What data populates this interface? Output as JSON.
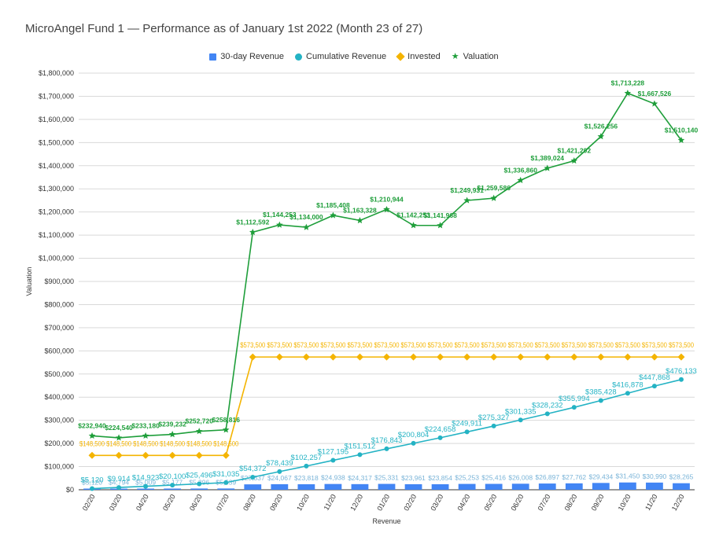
{
  "chart_data": {
    "type": "bar",
    "title": "MicroAngel Fund 1 — Performance as of January 1st 2022 (Month 23 of 27)",
    "xlabel": "Revenue",
    "ylabel": "Valuation",
    "ylim": [
      0,
      1800000
    ],
    "yticks": [
      "$0",
      "$100,000",
      "$200,000",
      "$300,000",
      "$400,000",
      "$500,000",
      "$600,000",
      "$700,000",
      "$800,000",
      "$900,000",
      "$1,000,000",
      "$1,100,000",
      "$1,200,000",
      "$1,300,000",
      "$1,400,000",
      "$1,500,000",
      "$1,600,000",
      "$1,700,000",
      "$1,800,000"
    ],
    "grid": true,
    "legend_position": "top",
    "categories": [
      "02/20",
      "03/20",
      "04/20",
      "05/20",
      "06/20",
      "07/20",
      "08/20",
      "09/20",
      "10/20",
      "11/20",
      "12/20",
      "01/20",
      "02/20",
      "03/20",
      "04/20",
      "05/20",
      "06/20",
      "07/20",
      "08/20",
      "09/20",
      "10/20",
      "11/20",
      "12/20"
    ],
    "series": [
      {
        "name": "30-day Revenue",
        "type": "bar",
        "color": "#4285f4",
        "values": [
          5120,
          4794,
          5009,
          5177,
          5396,
          5539,
          23337,
          24067,
          23818,
          24938,
          24317,
          25331,
          23961,
          23854,
          25253,
          25416,
          26008,
          26897,
          27762,
          29434,
          31450,
          30990,
          28265
        ],
        "labels": [
          "$5,120",
          "$4,794",
          "$5,009",
          "$5,177",
          "$5,396",
          "$5,539",
          "$23,337",
          "$24,067",
          "$23,818",
          "$24,938",
          "$24,317",
          "$25,331",
          "$23,961",
          "$23,854",
          "$25,253",
          "$25,416",
          "$26,008",
          "$26,897",
          "$27,762",
          "$29,434",
          "$31,450",
          "$30,990",
          "$28,265"
        ]
      },
      {
        "name": "Cumulative Revenue",
        "type": "line",
        "color": "#24b3c4",
        "values": [
          5120,
          9914,
          14923,
          20100,
          25496,
          31035,
          54372,
          78439,
          102257,
          127195,
          151512,
          176843,
          200804,
          224658,
          249911,
          275327,
          301335,
          328232,
          355994,
          385428,
          416878,
          447868,
          476133
        ],
        "labels": [
          "$5,120",
          "$9,914",
          "$14,923",
          "$20,100",
          "$25,496",
          "$31,035",
          "$54,372",
          "$78,439",
          "$102,257",
          "$127,195",
          "$151,512",
          "$176,843",
          "$200,804",
          "$224,658",
          "$249,911",
          "$275,327",
          "$301,335",
          "$328,232",
          "$355,994",
          "$385,428",
          "$416,878",
          "$447,868",
          "$476,133"
        ]
      },
      {
        "name": "Invested",
        "type": "line",
        "color": "#f4b400",
        "values": [
          148500,
          148500,
          148500,
          148500,
          148500,
          148500,
          573500,
          573500,
          573500,
          573500,
          573500,
          573500,
          573500,
          573500,
          573500,
          573500,
          573500,
          573500,
          573500,
          573500,
          573500,
          573500,
          573500
        ],
        "labels": [
          "$148,500",
          "$148,500",
          "$148,500",
          "$148,500",
          "$148,500",
          "$148,500",
          "$573,500",
          "$573,500",
          "$573,500",
          "$573,500",
          "$573,500",
          "$573,500",
          "$573,500",
          "$573,500",
          "$573,500",
          "$573,500",
          "$573,500",
          "$573,500",
          "$573,500",
          "$573,500",
          "$573,500",
          "$573,500",
          "$573,500"
        ]
      },
      {
        "name": "Valuation",
        "type": "line",
        "color": "#1e9e3a",
        "values": [
          232940,
          224540,
          233180,
          239232,
          252720,
          258816,
          1112592,
          1144253,
          1134000,
          1185408,
          1163328,
          1210944,
          1142253,
          1141968,
          1249931,
          1259586,
          1336860,
          1389024,
          1421292,
          1526256,
          1713228,
          1667526,
          1510140
        ],
        "labels": [
          "$232,940",
          "$224,540",
          "$233,180",
          "$239,232",
          "$252,720",
          "$258,816",
          "$1,112,592",
          "$1,144,253",
          "$1,134,000",
          "$1,185,408",
          "$1,163,328",
          "$1,210,944",
          "$1,142,253",
          "$1,141,968",
          "$1,249,931",
          "$1,259,586",
          "$1,336,860",
          "$1,389,024",
          "$1,421,292",
          "$1,526,256",
          "$1,713,228",
          "$1,667,526",
          "$1,510,140"
        ]
      }
    ]
  }
}
